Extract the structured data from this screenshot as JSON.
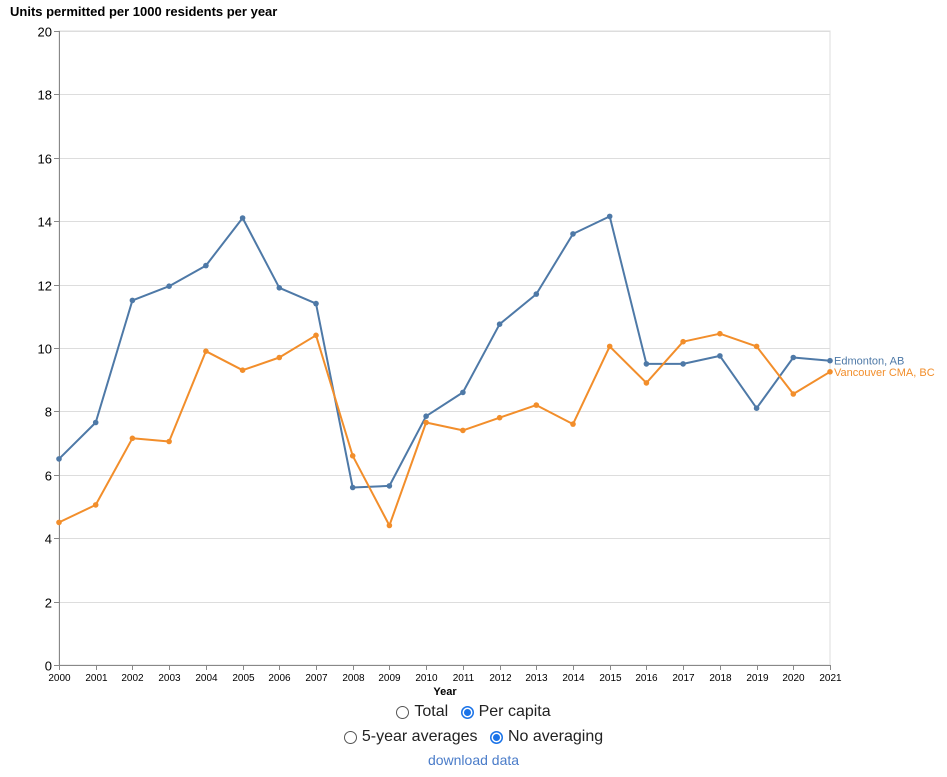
{
  "chart_data": {
    "type": "line",
    "title": "Units permitted per 1000 residents per year",
    "xlabel": "Year",
    "ylabel": "",
    "x": [
      2000,
      2001,
      2002,
      2003,
      2004,
      2005,
      2006,
      2007,
      2008,
      2009,
      2010,
      2011,
      2012,
      2013,
      2014,
      2015,
      2016,
      2017,
      2018,
      2019,
      2020,
      2021
    ],
    "ylim": [
      0,
      20
    ],
    "yticks": [
      0,
      2,
      4,
      6,
      8,
      10,
      12,
      14,
      16,
      18,
      20
    ],
    "grid": true,
    "series": [
      {
        "name": "Edmonton, AB",
        "color": "#4e79a7",
        "values": [
          6.5,
          7.65,
          11.5,
          11.95,
          12.6,
          14.1,
          11.9,
          11.4,
          5.6,
          5.65,
          7.85,
          8.6,
          10.75,
          11.7,
          13.6,
          14.15,
          9.5,
          9.5,
          9.75,
          8.1,
          9.7,
          9.6
        ]
      },
      {
        "name": "Vancouver CMA, BC",
        "color": "#f28e2b",
        "values": [
          4.5,
          5.05,
          7.15,
          7.05,
          9.9,
          9.3,
          9.7,
          10.4,
          6.6,
          4.4,
          7.65,
          7.4,
          7.8,
          8.2,
          7.6,
          10.05,
          8.9,
          10.2,
          10.45,
          10.05,
          8.55,
          9.25
        ]
      }
    ]
  },
  "controls": {
    "measure": [
      {
        "label": "Total",
        "checked": false
      },
      {
        "label": "Per capita",
        "checked": true
      }
    ],
    "averaging": [
      {
        "label": "5-year averages",
        "checked": false
      },
      {
        "label": "No averaging",
        "checked": true
      }
    ],
    "download_label": "download data"
  }
}
